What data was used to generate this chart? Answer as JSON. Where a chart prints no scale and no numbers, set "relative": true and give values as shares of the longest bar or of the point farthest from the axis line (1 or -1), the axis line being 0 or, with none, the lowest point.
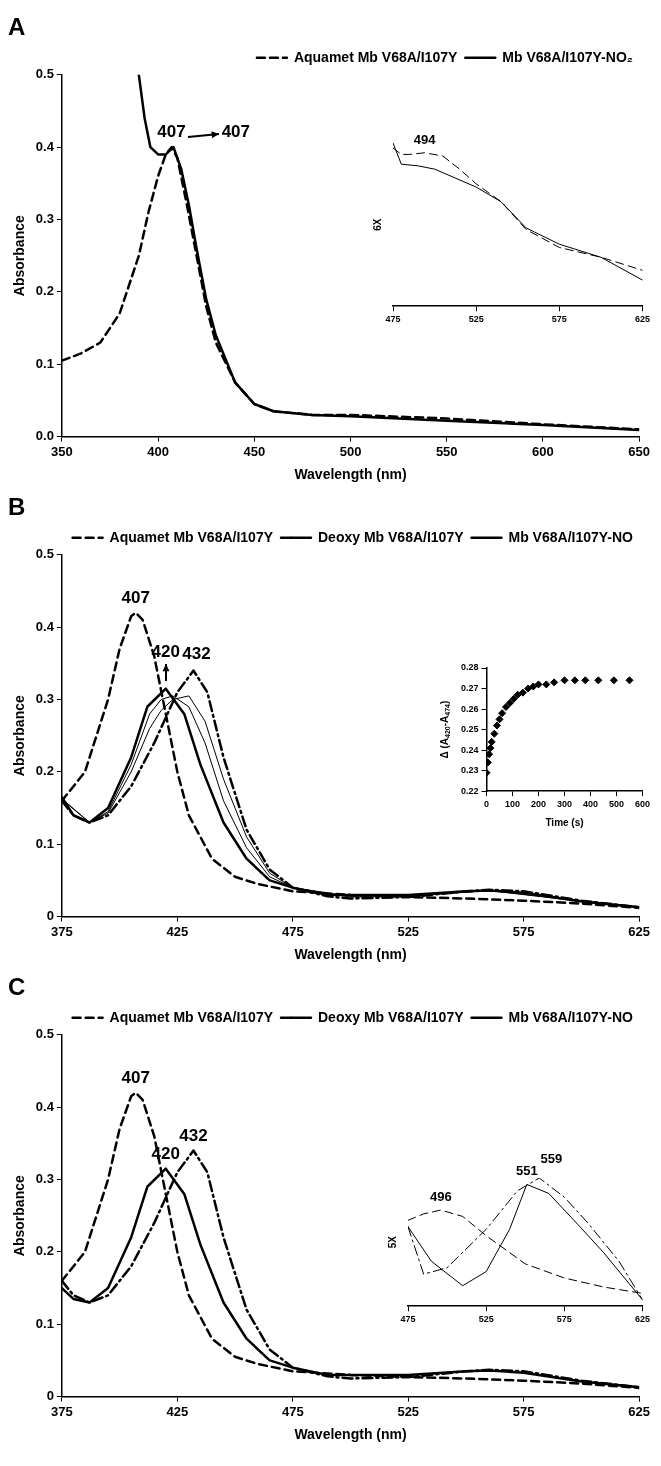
{
  "chart_data": [
    {
      "type": "line",
      "title": "A",
      "xlabel": "Wavelength (nm)",
      "ylabel": "Absorbance",
      "xlim": [
        350,
        650
      ],
      "xticks": [
        350,
        400,
        450,
        500,
        550,
        600,
        650
      ],
      "ylim": [
        0,
        0.5
      ],
      "yticks": [
        {
          "value": 0,
          "label": "0.0"
        },
        0.1,
        0.2,
        0.3,
        0.4,
        0.5
      ],
      "legend": "top right",
      "series": [
        {
          "name": "Aquamet Mb V68A/I107Y",
          "color": "#000000",
          "line_style": "dashed",
          "x": [
            350,
            360,
            370,
            380,
            390,
            395,
            400,
            404,
            407,
            410,
            415,
            420,
            425,
            430,
            440,
            450,
            460,
            480,
            500,
            550,
            600,
            650
          ],
          "values": [
            0.105,
            0.115,
            0.13,
            0.17,
            0.25,
            0.31,
            0.36,
            0.39,
            0.4,
            0.385,
            0.32,
            0.25,
            0.18,
            0.13,
            0.075,
            0.045,
            0.035,
            0.03,
            0.03,
            0.025,
            0.017,
            0.01
          ]
        },
        {
          "name": "Mb V68A/I107Y-NO₂",
          "color": "#000000",
          "line_style": "solid",
          "x": [
            390,
            393,
            396,
            400,
            404,
            408,
            412,
            416,
            420,
            425,
            430,
            440,
            450,
            460,
            480,
            500,
            550,
            600,
            650
          ],
          "values": [
            0.5,
            0.44,
            0.4,
            0.39,
            0.39,
            0.4,
            0.37,
            0.32,
            0.26,
            0.19,
            0.14,
            0.075,
            0.045,
            0.035,
            0.03,
            0.028,
            0.022,
            0.016,
            0.009
          ]
        }
      ],
      "annotations": [
        {
          "text": "407",
          "x": 407,
          "y": 0.4
        },
        {
          "text": "407",
          "x": 408,
          "y": 0.4
        }
      ]
    },
    {
      "type": "line",
      "relative": true,
      "ylabel": "6X",
      "xlim": [
        475,
        625
      ],
      "xticks": [
        475,
        525,
        575,
        625
      ],
      "series": [
        {
          "color": "#000000",
          "line_style": "dashed",
          "x": [
            475,
            480,
            485,
            494,
            505,
            515,
            525,
            540,
            555,
            575,
            600,
            625
          ],
          "values": [
            0.97,
            0.93,
            0.93,
            0.94,
            0.92,
            0.84,
            0.75,
            0.64,
            0.47,
            0.36,
            0.3,
            0.22
          ]
        },
        {
          "color": "#000000",
          "line_style": "solid",
          "x": [
            475,
            480,
            490,
            500,
            525,
            540,
            555,
            575,
            600,
            625
          ],
          "values": [
            1.0,
            0.87,
            0.86,
            0.84,
            0.73,
            0.64,
            0.48,
            0.38,
            0.3,
            0.16
          ]
        }
      ],
      "annotations": [
        {
          "text": "494",
          "x": 494,
          "y": 0.94
        }
      ]
    },
    {
      "type": "line",
      "title": "B",
      "xlabel": "Wavelength (nm)",
      "ylabel": "Absorbance",
      "xlim": [
        375,
        625
      ],
      "xticks": [
        375,
        425,
        475,
        525,
        575,
        625
      ],
      "ylim": [
        0,
        0.5
      ],
      "yticks": [
        0,
        0.1,
        0.2,
        0.3,
        0.4,
        0.5
      ],
      "legend": "top right",
      "series": [
        {
          "name": "Aquamet Mb V68A/I107Y",
          "color": "#000000",
          "line_style": "dashed",
          "x": [
            375,
            385,
            395,
            400,
            405,
            407,
            410,
            415,
            420,
            425,
            430,
            440,
            450,
            460,
            475,
            500,
            525,
            550,
            575,
            600,
            625
          ],
          "values": [
            0.16,
            0.2,
            0.3,
            0.37,
            0.415,
            0.42,
            0.41,
            0.36,
            0.28,
            0.2,
            0.14,
            0.08,
            0.055,
            0.045,
            0.035,
            0.03,
            0.027,
            0.025,
            0.022,
            0.018,
            0.012
          ]
        },
        {
          "name": "Deoxy Mb V68A/I107Y",
          "color": "#000000",
          "line_style": "dashdot",
          "x": [
            375,
            380,
            387,
            395,
            405,
            415,
            425,
            432,
            438,
            445,
            455,
            465,
            475,
            490,
            500,
            525,
            550,
            560,
            575,
            600,
            625
          ],
          "values": [
            0.16,
            0.14,
            0.13,
            0.14,
            0.18,
            0.24,
            0.31,
            0.34,
            0.31,
            0.22,
            0.12,
            0.065,
            0.04,
            0.028,
            0.025,
            0.027,
            0.035,
            0.037,
            0.035,
            0.022,
            0.013
          ]
        },
        {
          "name": "Mb V68A/I107Y-NO",
          "color": "#000000",
          "line_style": "solid",
          "x": [
            375,
            380,
            387,
            395,
            405,
            412,
            420,
            428,
            435,
            445,
            455,
            465,
            475,
            490,
            500,
            525,
            550,
            560,
            575,
            600,
            625
          ],
          "values": [
            0.165,
            0.14,
            0.13,
            0.15,
            0.22,
            0.29,
            0.315,
            0.28,
            0.21,
            0.13,
            0.08,
            0.05,
            0.04,
            0.03,
            0.03,
            0.03,
            0.035,
            0.036,
            0.033,
            0.021,
            0.013
          ]
        },
        {
          "color": "#000000",
          "line_style": "solid",
          "x": [
            375,
            387,
            395,
            405,
            413,
            418,
            423,
            430,
            437,
            445,
            455,
            465,
            475,
            500,
            525,
            560,
            600,
            625
          ],
          "values": [
            0.163,
            0.13,
            0.145,
            0.21,
            0.28,
            0.3,
            0.305,
            0.29,
            0.24,
            0.16,
            0.095,
            0.055,
            0.04,
            0.028,
            0.029,
            0.036,
            0.021,
            0.013
          ]
        },
        {
          "color": "#000000",
          "line_style": "solid",
          "x": [
            375,
            387,
            395,
            405,
            413,
            418,
            423,
            430,
            437,
            445,
            455,
            465,
            475,
            500,
            525,
            560,
            600,
            625
          ],
          "values": [
            0.162,
            0.13,
            0.143,
            0.2,
            0.26,
            0.285,
            0.3,
            0.305,
            0.27,
            0.19,
            0.11,
            0.06,
            0.04,
            0.027,
            0.028,
            0.036,
            0.022,
            0.013
          ]
        }
      ],
      "annotations": [
        {
          "text": "407",
          "x": 407,
          "y": 0.42
        },
        {
          "text": "420",
          "x": 420,
          "y": 0.315
        },
        {
          "text": "432",
          "x": 432,
          "y": 0.34
        }
      ]
    },
    {
      "type": "scatter",
      "marker": "diamond",
      "xlabel": "Time (s)",
      "ylabel": "Δ (A$_{420}$-A$_{474}$)",
      "xlim": [
        0,
        600
      ],
      "xticks": [
        0,
        100,
        200,
        300,
        400,
        500,
        600
      ],
      "ylim": [
        0.22,
        0.28
      ],
      "yticks": [
        0.22,
        0.23,
        0.24,
        0.25,
        0.26,
        0.27,
        0.28
      ],
      "series": [
        {
          "color": "#000000",
          "x": [
            0,
            5,
            10,
            15,
            20,
            30,
            40,
            50,
            60,
            75,
            90,
            105,
            120,
            140,
            160,
            180,
            200,
            230,
            260,
            300,
            340,
            380,
            430,
            490,
            550
          ],
          "values": [
            0.229,
            0.234,
            0.238,
            0.241,
            0.244,
            0.248,
            0.252,
            0.255,
            0.258,
            0.261,
            0.263,
            0.265,
            0.267,
            0.268,
            0.27,
            0.271,
            0.272,
            0.272,
            0.273,
            0.274,
            0.274,
            0.274,
            0.274,
            0.274,
            0.274
          ]
        }
      ]
    },
    {
      "type": "line",
      "title": "C",
      "xlabel": "Wavelength (nm)",
      "ylabel": "Absorbance",
      "xlim": [
        375,
        625
      ],
      "xticks": [
        375,
        425,
        475,
        525,
        575,
        625
      ],
      "ylim": [
        0,
        0.5
      ],
      "yticks": [
        0,
        0.1,
        0.2,
        0.3,
        0.4,
        0.5
      ],
      "legend": "top right",
      "series": [
        {
          "name": "Aquamet Mb V68A/I107Y",
          "color": "#000000",
          "line_style": "dashed",
          "x": [
            375,
            385,
            395,
            400,
            405,
            407,
            410,
            415,
            420,
            425,
            430,
            440,
            450,
            460,
            475,
            500,
            525,
            550,
            575,
            600,
            625
          ],
          "values": [
            0.16,
            0.2,
            0.3,
            0.37,
            0.415,
            0.42,
            0.41,
            0.36,
            0.28,
            0.2,
            0.14,
            0.08,
            0.055,
            0.045,
            0.035,
            0.03,
            0.027,
            0.025,
            0.022,
            0.018,
            0.012
          ]
        },
        {
          "name": "Deoxy Mb V68A/I107Y",
          "color": "#000000",
          "line_style": "dashdot",
          "x": [
            375,
            380,
            387,
            395,
            405,
            415,
            425,
            432,
            438,
            445,
            455,
            465,
            475,
            490,
            500,
            525,
            550,
            560,
            575,
            600,
            625
          ],
          "values": [
            0.16,
            0.14,
            0.13,
            0.14,
            0.18,
            0.24,
            0.31,
            0.34,
            0.31,
            0.22,
            0.12,
            0.065,
            0.04,
            0.028,
            0.025,
            0.027,
            0.035,
            0.037,
            0.035,
            0.022,
            0.013
          ]
        },
        {
          "name": "Mb V68A/I107Y-NO",
          "color": "#000000",
          "line_style": "solid",
          "x": [
            375,
            380,
            387,
            395,
            405,
            412,
            420,
            428,
            435,
            445,
            455,
            465,
            475,
            490,
            500,
            525,
            550,
            560,
            575,
            600,
            625
          ],
          "values": [
            0.15,
            0.135,
            0.13,
            0.15,
            0.22,
            0.29,
            0.315,
            0.28,
            0.21,
            0.13,
            0.08,
            0.05,
            0.04,
            0.03,
            0.03,
            0.03,
            0.035,
            0.036,
            0.033,
            0.021,
            0.013
          ]
        }
      ],
      "annotations": [
        {
          "text": "407",
          "x": 407,
          "y": 0.42
        },
        {
          "text": "420",
          "x": 420,
          "y": 0.315
        },
        {
          "text": "432",
          "x": 432,
          "y": 0.34
        }
      ]
    },
    {
      "type": "line",
      "relative": true,
      "ylabel": "5X",
      "xlim": [
        475,
        625
      ],
      "xticks": [
        475,
        525,
        575,
        625
      ],
      "series": [
        {
          "color": "#000000",
          "line_style": "dashed",
          "x": [
            475,
            485,
            496,
            510,
            525,
            550,
            575,
            600,
            625
          ],
          "values": [
            0.67,
            0.72,
            0.75,
            0.7,
            0.55,
            0.33,
            0.22,
            0.15,
            0.1
          ]
        },
        {
          "color": "#000000",
          "line_style": "dashdot",
          "x": [
            475,
            485,
            500,
            525,
            545,
            559,
            575,
            590,
            610,
            625
          ],
          "values": [
            0.62,
            0.25,
            0.3,
            0.6,
            0.9,
            1.0,
            0.85,
            0.65,
            0.35,
            0.05
          ]
        },
        {
          "color": "#000000",
          "line_style": "solid",
          "x": [
            475,
            490,
            510,
            525,
            540,
            551,
            565,
            585,
            600,
            625
          ],
          "values": [
            0.62,
            0.35,
            0.16,
            0.27,
            0.6,
            0.95,
            0.88,
            0.62,
            0.42,
            0.05
          ]
        }
      ],
      "annotations": [
        {
          "text": "496",
          "x": 496,
          "y": 0.75
        },
        {
          "text": "551",
          "x": 551,
          "y": 0.95
        },
        {
          "text": "559",
          "x": 559,
          "y": 1.0
        }
      ]
    }
  ]
}
